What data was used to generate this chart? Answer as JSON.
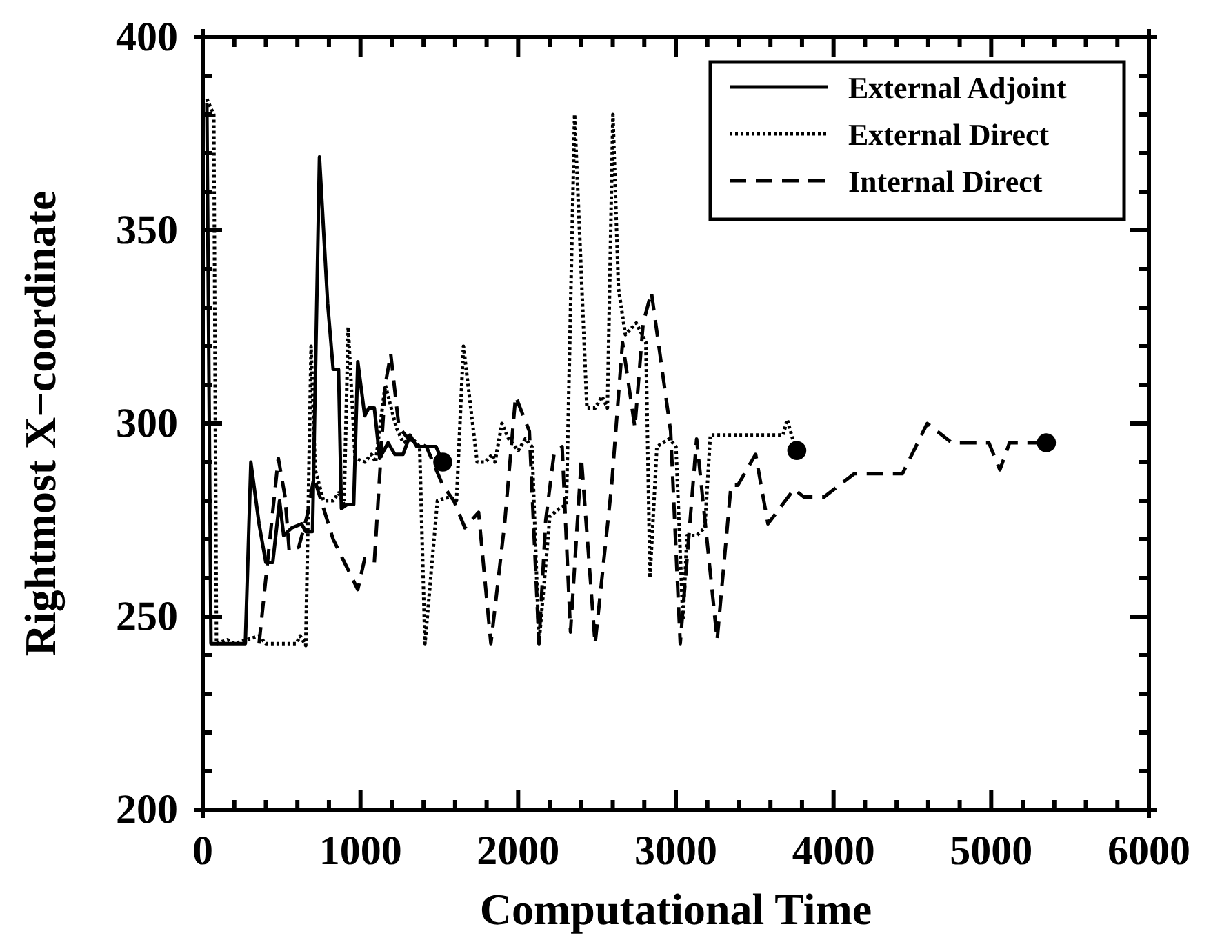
{
  "chart_data": {
    "type": "line",
    "xlabel": "Computational Time",
    "ylabel": "Rightmost X−coordinate",
    "xlim": [
      0,
      6000
    ],
    "ylim": [
      200,
      400
    ],
    "xticks": [
      0,
      {
        "value": 200,
        "label": null
      },
      {
        "value": 400,
        "label": null
      },
      {
        "value": 600,
        "label": null
      },
      {
        "value": 800,
        "label": null
      },
      1000,
      {
        "value": 1200,
        "label": null
      },
      {
        "value": 1400,
        "label": null
      },
      {
        "value": 1600,
        "label": null
      },
      {
        "value": 1800,
        "label": null
      },
      2000,
      {
        "value": 2200,
        "label": null
      },
      {
        "value": 2400,
        "label": null
      },
      {
        "value": 2600,
        "label": null
      },
      {
        "value": 2800,
        "label": null
      },
      3000,
      {
        "value": 3200,
        "label": null
      },
      {
        "value": 3400,
        "label": null
      },
      {
        "value": 3600,
        "label": null
      },
      {
        "value": 3800,
        "label": null
      },
      4000,
      {
        "value": 4200,
        "label": null
      },
      {
        "value": 4400,
        "label": null
      },
      {
        "value": 4600,
        "label": null
      },
      {
        "value": 4800,
        "label": null
      },
      5000,
      {
        "value": 5200,
        "label": null
      },
      {
        "value": 5400,
        "label": null
      },
      {
        "value": 5600,
        "label": null
      },
      {
        "value": 5800,
        "label": null
      },
      6000
    ],
    "yticks": [
      200,
      {
        "value": 210,
        "label": null
      },
      {
        "value": 220,
        "label": null
      },
      {
        "value": 230,
        "label": null
      },
      {
        "value": 240,
        "label": null
      },
      250,
      {
        "value": 260,
        "label": null
      },
      {
        "value": 270,
        "label": null
      },
      {
        "value": 280,
        "label": null
      },
      {
        "value": 290,
        "label": null
      },
      300,
      {
        "value": 310,
        "label": null
      },
      {
        "value": 320,
        "label": null
      },
      {
        "value": 330,
        "label": null
      },
      {
        "value": 340,
        "label": null
      },
      350,
      {
        "value": 360,
        "label": null
      },
      {
        "value": 370,
        "label": null
      },
      {
        "value": 380,
        "label": null
      },
      {
        "value": 390,
        "label": null
      },
      400
    ],
    "grid": false,
    "legend": "top right",
    "marker": "none",
    "series": [
      {
        "name": "External Adjoint",
        "color": "#000000",
        "line_style": "solid",
        "x": [
          26,
          52,
          270,
          305,
          357,
          400,
          444,
          487,
          513,
          566,
          627,
          653,
          696,
          740,
          792,
          827,
          861,
          879,
          914,
          957,
          983,
          1027,
          1053,
          1088,
          1122,
          1175,
          1218,
          1270,
          1314,
          1357,
          1479,
          1522
        ],
        "values": [
          383,
          243,
          243,
          290,
          274,
          264,
          264,
          280,
          271,
          273,
          274,
          272,
          272,
          369,
          331,
          314,
          314,
          278,
          279,
          279,
          316,
          302,
          304,
          304,
          291,
          295,
          292,
          292,
          297,
          294,
          294,
          290
        ]
      },
      {
        "name": "External Direct",
        "color": "#000000",
        "line_style": "dotted",
        "x": [
          26,
          70,
          87,
          157,
          200,
          357,
          400,
          592,
          618,
          653,
          687,
          713,
          766,
          827,
          861,
          896,
          922,
          966,
          1027,
          1070,
          1096,
          1157,
          1227,
          1270,
          1331,
          1375,
          1409,
          1488,
          1566,
          1609,
          1653,
          1740,
          1792,
          1836,
          1853,
          1897,
          1940,
          2001,
          2045,
          2088,
          2132,
          2201,
          2262,
          2306,
          2358,
          2436,
          2488,
          2532,
          2566,
          2601,
          2636,
          2680,
          2749,
          2810,
          2836,
          2880,
          2958,
          3001,
          3045,
          3071,
          3132,
          3184,
          3219,
          3680,
          3706,
          3741,
          3767
        ],
        "values": [
          384,
          380,
          243,
          244,
          243,
          245,
          243,
          243,
          245,
          242.5,
          320,
          288,
          280,
          280,
          282,
          279,
          325,
          291,
          290,
          292,
          290,
          310,
          299,
          295,
          296,
          294,
          243,
          280,
          281,
          280,
          320,
          290,
          290,
          292,
          290,
          300,
          296,
          293,
          296,
          294,
          243,
          276,
          278,
          279,
          380,
          304,
          304,
          307,
          304,
          380,
          335,
          323,
          326,
          321,
          260,
          294,
          296,
          294,
          249,
          271,
          271,
          273,
          297,
          297,
          301,
          296,
          293
        ]
      },
      {
        "name": "Internal Direct",
        "color": "#000000",
        "line_style": "dashed",
        "x": [
          357,
          479,
          522,
          548,
          609,
          661,
          705,
          827,
          983,
          1027,
          1088,
          1157,
          1192,
          1244,
          1305,
          1418,
          1522,
          1592,
          1662,
          1749,
          1827,
          1914,
          1984,
          2071,
          2132,
          2175,
          2227,
          2279,
          2332,
          2401,
          2488,
          2593,
          2662,
          2740,
          2793,
          2845,
          2967,
          3028,
          3132,
          3262,
          3350,
          3393,
          3506,
          3584,
          3750,
          3811,
          3941,
          4132,
          4437,
          4594,
          4750,
          4985,
          5055,
          5116,
          5350
        ],
        "values": [
          243,
          291,
          281,
          267,
          268,
          276,
          286,
          270,
          257,
          265,
          264,
          310,
          318,
          299,
          296,
          294,
          284,
          280,
          273,
          277,
          243,
          274,
          307,
          298,
          243,
          275,
          292,
          294,
          246,
          291,
          243,
          284,
          321,
          299,
          326,
          334,
          298,
          243,
          296,
          244,
          284,
          284,
          292,
          274,
          283,
          281,
          281,
          287,
          287,
          300,
          295,
          295,
          288,
          295,
          295
        ]
      },
      {
        "type": "scatter",
        "color": "#000000",
        "marker": "circle",
        "x": [
          1522,
          3767,
          5350
        ],
        "values": [
          290,
          293,
          295
        ]
      }
    ]
  }
}
